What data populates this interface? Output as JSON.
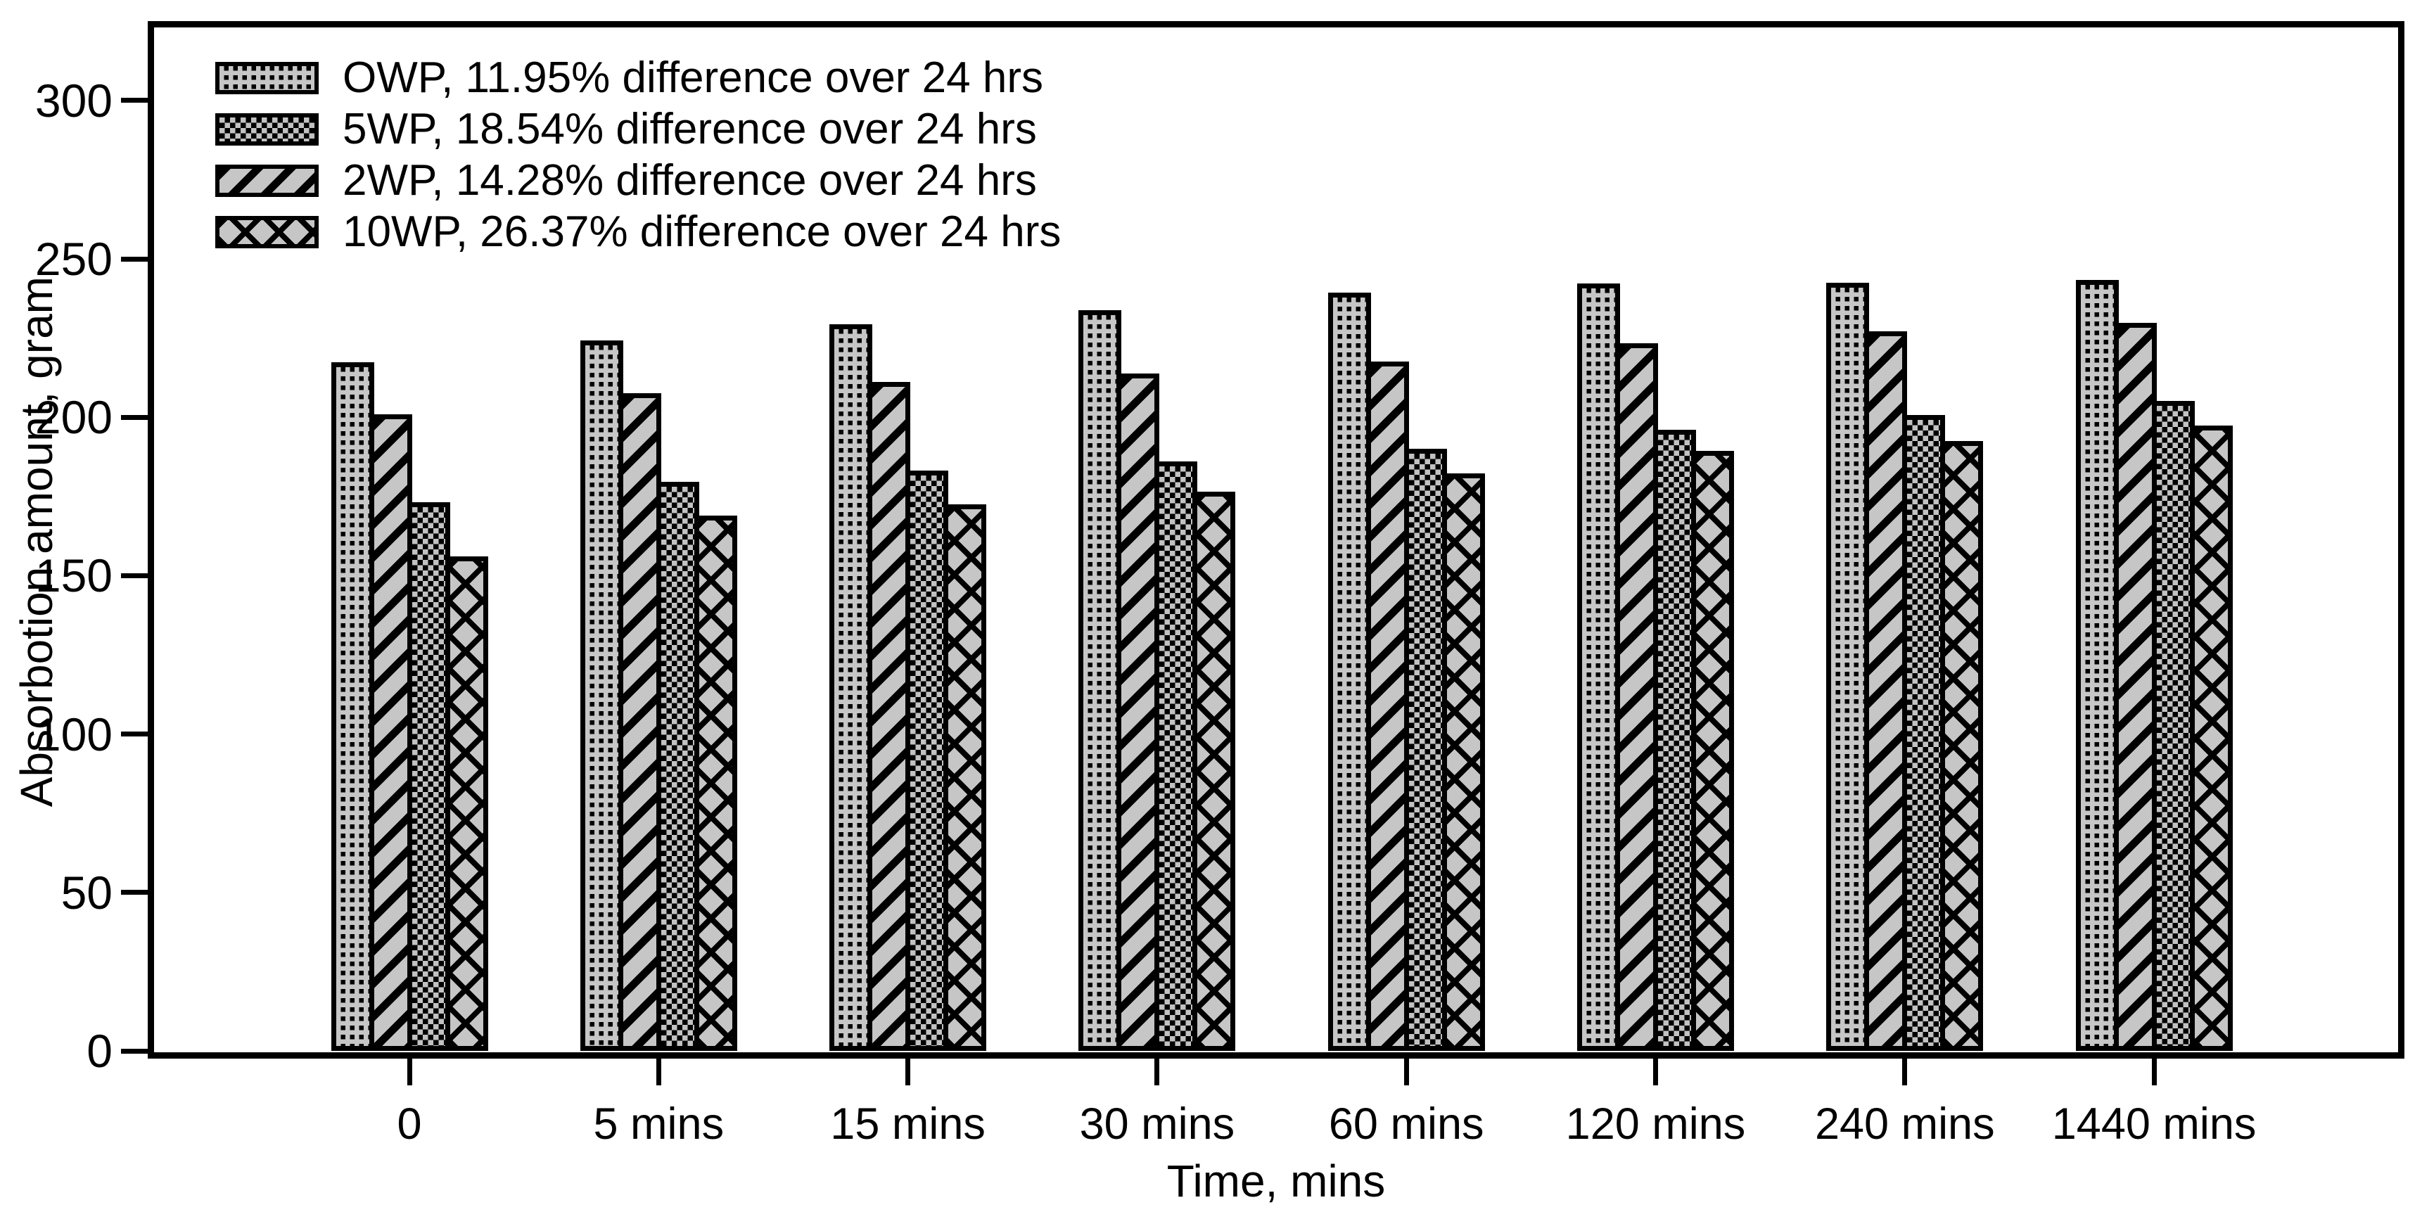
{
  "figure": {
    "background": "#ffffff",
    "ink_color": "#000000",
    "bar_fill_color": "#c6c6c6"
  },
  "chart_data": {
    "type": "bar",
    "title": "",
    "xlabel": "Time, mins",
    "ylabel": "Absorbotion amount, gram",
    "ylim": [
      0,
      300
    ],
    "yticks": [
      0,
      50,
      100,
      150,
      200,
      250,
      300
    ],
    "grid": false,
    "legend_position": "upper-left",
    "categories": [
      "0",
      "5 mins",
      "15 mins",
      "30 mins",
      "60 mins",
      "120 mins",
      "240 mins",
      "1440 mins"
    ],
    "bar_order": [
      "OWP",
      "2WP",
      "5WP",
      "10WP"
    ],
    "series": [
      {
        "name": "OWP",
        "legend_label": "OWP, 11.95% difference over 24 hrs",
        "pattern": "fine-dot-grid",
        "values": [
          217.4,
          224.3,
          229.4,
          233.9,
          239.3,
          242.3,
          242.5,
          243.4
        ]
      },
      {
        "name": "5WP",
        "legend_label": "5WP, 18.54% difference over 24 hrs",
        "pattern": "dense-checker",
        "values": [
          173.1,
          179.7,
          183.2,
          186.0,
          190.1,
          196.0,
          200.8,
          205.2
        ]
      },
      {
        "name": "2WP",
        "legend_label": "2WP, 14.28% difference over 24 hrs",
        "pattern": "diagonal-stripes",
        "values": [
          201.0,
          207.5,
          211.2,
          213.7,
          217.6,
          223.4,
          227.2,
          229.7
        ]
      },
      {
        "name": "10WP",
        "legend_label": "10WP, 26.37% difference over 24 hrs",
        "pattern": "diamond-crosshatch",
        "values": [
          156.1,
          169.0,
          172.6,
          176.6,
          182.2,
          189.3,
          192.6,
          197.3
        ]
      }
    ]
  }
}
